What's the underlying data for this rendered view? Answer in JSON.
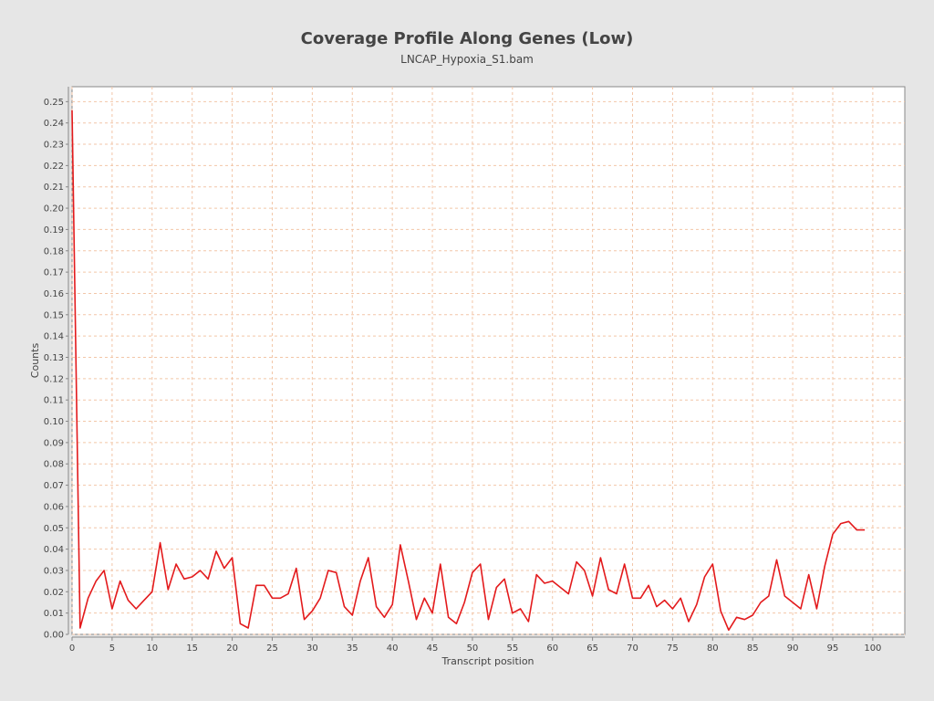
{
  "chart_data": {
    "type": "line",
    "title": "Coverage Profile Along Genes (Low)",
    "subtitle": "LNCAP_Hypoxia_S1.bam",
    "xlabel": "Transcript position",
    "ylabel": "Counts",
    "xlim": [
      0,
      104
    ],
    "ylim": [
      0,
      0.257
    ],
    "x_ticks": [
      "0",
      "5",
      "10",
      "15",
      "20",
      "25",
      "30",
      "35",
      "40",
      "45",
      "50",
      "55",
      "60",
      "65",
      "70",
      "75",
      "80",
      "85",
      "90",
      "95",
      "100"
    ],
    "y_ticks": [
      "0.00",
      "0.01",
      "0.02",
      "0.03",
      "0.04",
      "0.05",
      "0.06",
      "0.07",
      "0.08",
      "0.09",
      "0.10",
      "0.11",
      "0.12",
      "0.13",
      "0.14",
      "0.15",
      "0.16",
      "0.17",
      "0.18",
      "0.19",
      "0.20",
      "0.21",
      "0.22",
      "0.23",
      "0.24",
      "0.25"
    ],
    "grid": true,
    "colors": {
      "line": "#e31a1c",
      "grid": "#f2c6a8",
      "plot_bg": "#ffffff",
      "page_bg": "#e6e6e6",
      "text": "#444444"
    },
    "series": [
      {
        "x": [
          0,
          1,
          2,
          3,
          4,
          5,
          6,
          7,
          8,
          9,
          10,
          11,
          12,
          13,
          14,
          15,
          16,
          17,
          18,
          19,
          20,
          21,
          22,
          23,
          24,
          25,
          26,
          27,
          28,
          29,
          30,
          31,
          32,
          33,
          34,
          35,
          36,
          37,
          38,
          39,
          40,
          41,
          42,
          43,
          44,
          45,
          46,
          47,
          48,
          49,
          50,
          51,
          52,
          53,
          54,
          55,
          56,
          57,
          58,
          59,
          60,
          61,
          62,
          63,
          64,
          65,
          66,
          67,
          68,
          69,
          70,
          71,
          72,
          73,
          74,
          75,
          76,
          77,
          78,
          79,
          80,
          81,
          82,
          83,
          84,
          85,
          86,
          87,
          88,
          89,
          90,
          91,
          92,
          93,
          94,
          95,
          96,
          97,
          98,
          99
        ],
        "values": [
          0.246,
          0.003,
          0.017,
          0.025,
          0.03,
          0.012,
          0.025,
          0.016,
          0.012,
          0.016,
          0.02,
          0.043,
          0.021,
          0.033,
          0.026,
          0.027,
          0.03,
          0.026,
          0.039,
          0.031,
          0.036,
          0.005,
          0.003,
          0.023,
          0.023,
          0.017,
          0.017,
          0.019,
          0.031,
          0.007,
          0.011,
          0.017,
          0.03,
          0.029,
          0.013,
          0.009,
          0.025,
          0.036,
          0.013,
          0.008,
          0.014,
          0.042,
          0.025,
          0.007,
          0.017,
          0.01,
          0.033,
          0.008,
          0.005,
          0.015,
          0.029,
          0.033,
          0.007,
          0.022,
          0.026,
          0.01,
          0.012,
          0.006,
          0.028,
          0.024,
          0.025,
          0.022,
          0.019,
          0.034,
          0.03,
          0.018,
          0.036,
          0.021,
          0.019,
          0.033,
          0.017,
          0.017,
          0.023,
          0.013,
          0.016,
          0.012,
          0.017,
          0.006,
          0.014,
          0.027,
          0.033,
          0.011,
          0.002,
          0.008,
          0.007,
          0.009,
          0.015,
          0.018,
          0.035,
          0.018,
          0.015,
          0.012,
          0.028,
          0.012,
          0.032,
          0.047,
          0.052,
          0.053,
          0.049,
          0.049
        ]
      }
    ]
  }
}
